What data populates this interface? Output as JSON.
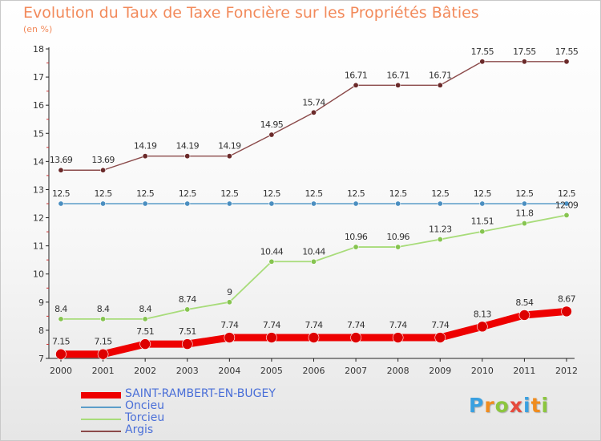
{
  "chart_data": {
    "type": "line",
    "title": "Evolution du Taux de Taxe Foncière sur les Propriétés Bâties",
    "subtitle": "(en %)",
    "x": [
      "2000",
      "2001",
      "2002",
      "2003",
      "2004",
      "2005",
      "2006",
      "2007",
      "2008",
      "2009",
      "2010",
      "2011",
      "2012"
    ],
    "ylim": [
      7,
      18
    ],
    "yticks": [
      "7",
      "8",
      "9",
      "10",
      "11",
      "12",
      "13",
      "14",
      "15",
      "16",
      "17",
      "18"
    ],
    "grid": false,
    "legend_position": "bottom-left",
    "series": [
      {
        "name": "SAINT-RAMBERT-EN-BUGEY",
        "color": "#ee0000",
        "values": [
          7.15,
          7.15,
          7.51,
          7.51,
          7.74,
          7.74,
          7.74,
          7.74,
          7.74,
          7.74,
          8.13,
          8.54,
          8.67
        ],
        "labels": [
          "7.15",
          "7.15",
          "7.51",
          "7.51",
          "7.74",
          "7.74",
          "7.74",
          "7.74",
          "7.74",
          "7.74",
          "8.13",
          "8.54",
          "8.67"
        ]
      },
      {
        "name": "Oncieu",
        "color": "#5c9ec9",
        "values": [
          12.5,
          12.5,
          12.5,
          12.5,
          12.5,
          12.5,
          12.5,
          12.5,
          12.5,
          12.5,
          12.5,
          12.5,
          12.5
        ],
        "labels": [
          "12.5",
          "12.5",
          "12.5",
          "12.5",
          "12.5",
          "12.5",
          "12.5",
          "12.5",
          "12.5",
          "12.5",
          "12.5",
          "12.5",
          "12.5"
        ]
      },
      {
        "name": "Torcieu",
        "color": "#a8dc7a",
        "values": [
          8.4,
          8.4,
          8.4,
          8.74,
          9,
          10.44,
          10.44,
          10.96,
          10.96,
          11.23,
          11.51,
          11.8,
          12.09
        ],
        "labels": [
          "8.4",
          "8.4",
          "8.4",
          "8.74",
          "9",
          "10.44",
          "10.44",
          "10.96",
          "10.96",
          "11.23",
          "11.51",
          "11.8",
          "12.09"
        ]
      },
      {
        "name": "Argis",
        "color": "#8b4a4a",
        "values": [
          13.69,
          13.69,
          14.19,
          14.19,
          14.19,
          14.95,
          15.74,
          16.71,
          16.71,
          16.71,
          17.55,
          17.55,
          17.55
        ],
        "labels": [
          "13.69",
          "13.69",
          "14.19",
          "14.19",
          "14.19",
          "14.95",
          "15.74",
          "16.71",
          "16.71",
          "16.71",
          "17.55",
          "17.55",
          "17.55"
        ]
      }
    ]
  },
  "brand": {
    "letters": [
      "P",
      "r",
      "o",
      "x",
      "i",
      "t",
      "i"
    ],
    "colors": [
      "#3aa0e0",
      "#f08c1e",
      "#8cc63f",
      "#e64a3c",
      "#3aa0e0",
      "#f08c1e",
      "#8cc63f"
    ]
  }
}
